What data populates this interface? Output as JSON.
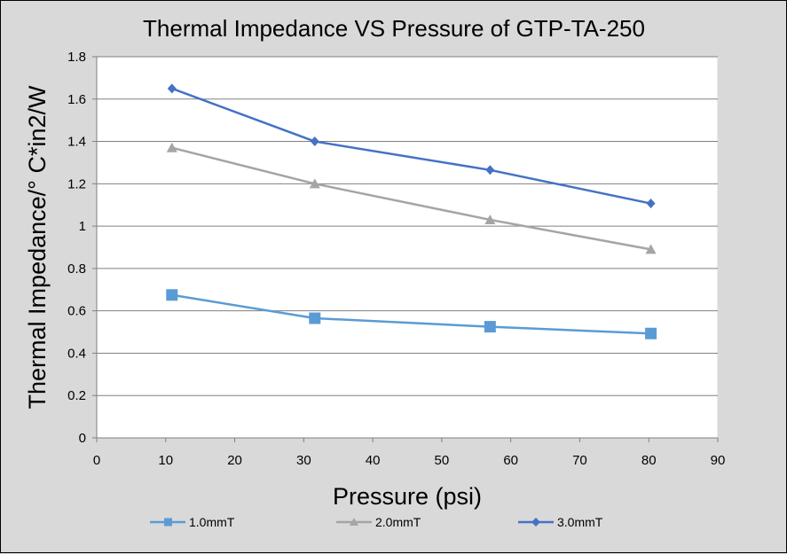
{
  "chart_data": {
    "type": "line",
    "title": "Thermal Impedance VS Pressure of GTP-TA-250",
    "xlabel": "Pressure (psi)",
    "ylabel": "Thermal Impedance/° C*in2/W",
    "xlim": [
      0,
      90
    ],
    "ylim": [
      0,
      1.8
    ],
    "xticks": [
      0,
      10,
      20,
      30,
      40,
      50,
      60,
      70,
      80,
      90
    ],
    "yticks": [
      "0",
      "0.2",
      "0.4",
      "0.6",
      "0.8",
      "1",
      "1.2",
      "1.4",
      "1.6",
      "1.8"
    ],
    "grid": "horizontal",
    "legend_position": "bottom",
    "series": [
      {
        "name": "1.0mmT",
        "color": "#5b9bd5",
        "marker": "square",
        "x": [
          10.9,
          31.6,
          57.0,
          80.3
        ],
        "y": [
          0.675,
          0.565,
          0.525,
          0.493
        ]
      },
      {
        "name": "2.0mmT",
        "color": "#a5a5a5",
        "marker": "triangle",
        "x": [
          10.9,
          31.6,
          57.0,
          80.3
        ],
        "y": [
          1.37,
          1.2,
          1.03,
          0.89
        ]
      },
      {
        "name": "3.0mmT",
        "color": "#4472c4",
        "marker": "diamond",
        "x": [
          10.9,
          31.6,
          57.0,
          80.3
        ],
        "y": [
          1.65,
          1.4,
          1.265,
          1.107
        ]
      }
    ]
  }
}
